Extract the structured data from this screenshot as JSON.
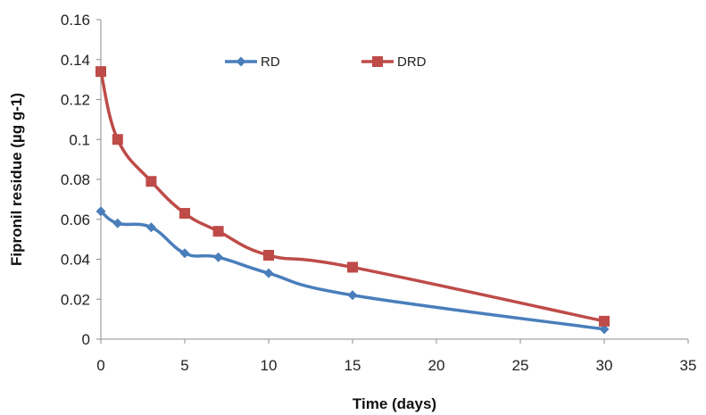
{
  "chart_data": {
    "type": "line",
    "xlabel": "Time (days)",
    "ylabel": "Fipronil residue (µg g-1)",
    "xlim": [
      0,
      35
    ],
    "ylim": [
      0,
      0.16
    ],
    "x_ticks": [
      "0",
      "5",
      "10",
      "15",
      "20",
      "25",
      "30",
      "35"
    ],
    "y_ticks": [
      "0",
      "0.02",
      "0.04",
      "0.06",
      "0.08",
      "0.1",
      "0.12",
      "0.14",
      "0.16"
    ],
    "grid": false,
    "legend_position": "top-center",
    "series": [
      {
        "name": "RD",
        "color": "#4a7ebb",
        "marker": "diamond",
        "x": [
          0,
          1,
          3,
          5,
          7,
          10,
          15,
          30
        ],
        "y": [
          0.064,
          0.058,
          0.056,
          0.043,
          0.041,
          0.033,
          0.022,
          0.005
        ]
      },
      {
        "name": "DRD",
        "color": "#be4b48",
        "marker": "square",
        "x": [
          0,
          1,
          3,
          5,
          7,
          10,
          15,
          30
        ],
        "y": [
          0.134,
          0.1,
          0.079,
          0.063,
          0.054,
          0.042,
          0.036,
          0.009
        ]
      }
    ]
  }
}
